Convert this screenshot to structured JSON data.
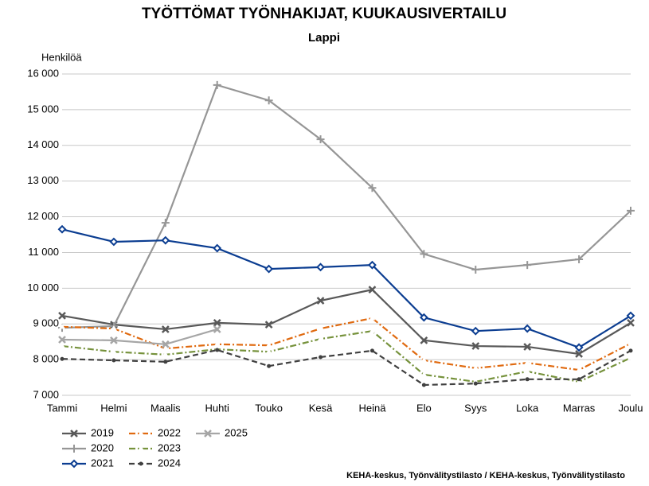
{
  "chart_data": {
    "type": "line",
    "title": "TYÖTTÖMAT TYÖNHAKIJAT, KUUKAUSIVERTAILU",
    "subtitle": "Lappi",
    "y_label": "Henkilöä",
    "source": "KEHA-keskus, Työnvälitystilasto / KEHA-keskus, Työnvälitystilasto",
    "categories": [
      "Tammi",
      "Helmi",
      "Maalis",
      "Huhti",
      "Touko",
      "Kesä",
      "Heinä",
      "Elo",
      "Syys",
      "Loka",
      "Marras",
      "Joulu"
    ],
    "ylim": [
      7000,
      16000
    ],
    "yticks": [
      {
        "value": 7000,
        "label": "7 000"
      },
      {
        "value": 8000,
        "label": "8 000"
      },
      {
        "value": 9000,
        "label": "9 000"
      },
      {
        "value": 10000,
        "label": "10 000"
      },
      {
        "value": 11000,
        "label": "11 000"
      },
      {
        "value": 12000,
        "label": "12 000"
      },
      {
        "value": 13000,
        "label": "13 000"
      },
      {
        "value": 14000,
        "label": "14 000"
      },
      {
        "value": 15000,
        "label": "15 000"
      },
      {
        "value": 16000,
        "label": "16 000"
      }
    ],
    "grid": true,
    "series": [
      {
        "name": "2019",
        "color": "#595959",
        "marker": "x",
        "dash": "",
        "values": [
          9230,
          8980,
          8850,
          9030,
          8980,
          9650,
          9960,
          8540,
          8380,
          8360,
          8160,
          9030
        ]
      },
      {
        "name": "2020",
        "color": "#969696",
        "marker": "plus",
        "dash": "",
        "values": [
          8890,
          8940,
          11830,
          15690,
          15260,
          14170,
          12810,
          10960,
          10520,
          10650,
          10810,
          12170
        ]
      },
      {
        "name": "2021",
        "color": "#0b3d91",
        "marker": "diamond",
        "dash": "",
        "values": [
          11650,
          11300,
          11340,
          11120,
          10540,
          10590,
          10650,
          9180,
          8800,
          8870,
          8340,
          9230
        ]
      },
      {
        "name": "2022",
        "color": "#e06a10",
        "marker": "triangle",
        "dash": "8 3 2 3",
        "values": [
          8920,
          8870,
          8310,
          8430,
          8400,
          8870,
          9160,
          7980,
          7760,
          7910,
          7710,
          8450
        ]
      },
      {
        "name": "2023",
        "color": "#76923c",
        "marker": "triangle",
        "dash": "8 3 2 3",
        "values": [
          8380,
          8220,
          8140,
          8290,
          8220,
          8580,
          8800,
          7580,
          7380,
          7670,
          7380,
          8050
        ]
      },
      {
        "name": "2024",
        "color": "#404040",
        "marker": "dot",
        "dash": "7 4",
        "values": [
          8020,
          7980,
          7940,
          8270,
          7820,
          8070,
          8250,
          7290,
          7330,
          7450,
          7450,
          8250
        ]
      },
      {
        "name": "2025",
        "color": "#a6a6a6",
        "marker": "x",
        "dash": "",
        "values": [
          8560,
          8540,
          8430,
          8850,
          null,
          null,
          null,
          null,
          null,
          null,
          null,
          null
        ]
      }
    ]
  }
}
